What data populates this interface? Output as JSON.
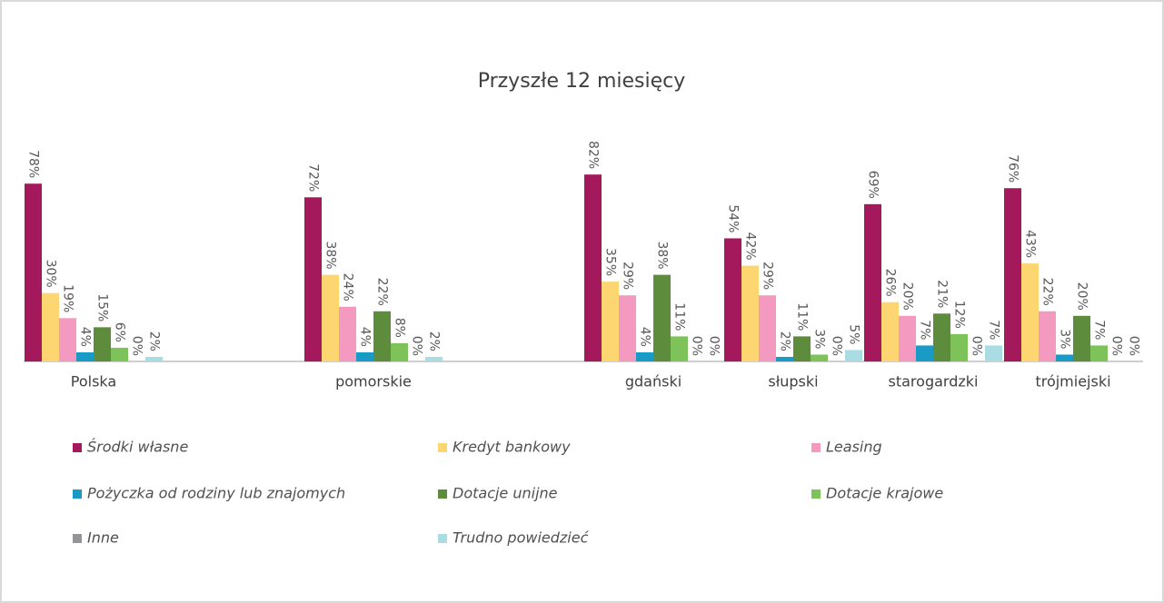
{
  "chart_data": {
    "type": "bar",
    "title": "Przyszłe 12 miesięcy",
    "categories": [
      "Polska",
      null,
      "pomorskie",
      null,
      "gdański",
      "słupski",
      "starogardzki",
      "trójmiejski"
    ],
    "ylim": [
      0,
      100
    ],
    "series": [
      {
        "name": "Środki własne",
        "color": "#a3195b",
        "values": [
          78,
          null,
          72,
          null,
          82,
          54,
          69,
          76
        ],
        "value_labels": [
          "78%",
          null,
          "72%",
          null,
          "82%",
          "54%",
          "69%",
          "76%"
        ]
      },
      {
        "name": "Kredyt bankowy",
        "color": "#fdd672",
        "values": [
          30,
          null,
          38,
          null,
          35,
          42,
          26,
          43
        ],
        "value_labels": [
          "30%",
          null,
          "38%",
          null,
          "35%",
          "42%",
          "26%",
          "43%"
        ]
      },
      {
        "name": "Leasing",
        "color": "#f49ac1",
        "values": [
          19,
          null,
          24,
          null,
          29,
          29,
          20,
          22
        ],
        "value_labels": [
          "19%",
          null,
          "24%",
          null,
          "29%",
          "29%",
          "20%",
          "22%"
        ]
      },
      {
        "name": "Pożyczka od rodziny lub znajomych",
        "color": "#1a9bc5",
        "values": [
          4,
          null,
          4,
          null,
          4,
          2,
          7,
          3
        ],
        "value_labels": [
          "4%",
          null,
          "4%",
          null,
          "4%",
          "2%",
          "7%",
          "3%"
        ]
      },
      {
        "name": "Dotacje unijne",
        "color": "#5c8c3c",
        "values": [
          15,
          null,
          22,
          null,
          38,
          11,
          21,
          20
        ],
        "value_labels": [
          "15%",
          null,
          "22%",
          null,
          "38%",
          "11%",
          "21%",
          "20%"
        ]
      },
      {
        "name": "Dotacje krajowe",
        "color": "#7dc35a",
        "values": [
          6,
          null,
          8,
          null,
          11,
          3,
          12,
          7
        ],
        "value_labels": [
          "6%",
          null,
          "8%",
          null,
          "11%",
          "3%",
          "12%",
          "7%"
        ]
      },
      {
        "name": "Inne",
        "color": "#939598",
        "values": [
          0,
          null,
          0,
          null,
          0,
          0,
          0,
          0
        ],
        "value_labels": [
          "0%",
          null,
          "0%",
          null,
          "0%",
          "0%",
          "0%",
          "0%"
        ]
      },
      {
        "name": "Trudno powiedzieć",
        "color": "#a9dce3",
        "values": [
          2,
          null,
          2,
          null,
          0,
          5,
          7,
          0
        ],
        "value_labels": [
          "2%",
          null,
          "2%",
          null,
          "0%",
          "5%",
          "7%",
          "0%"
        ]
      }
    ]
  }
}
